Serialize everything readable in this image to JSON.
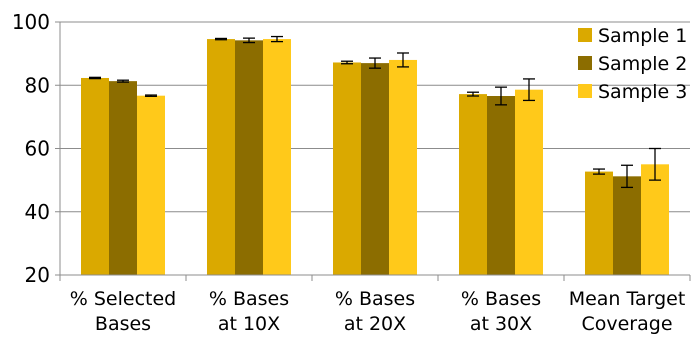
{
  "chart_data": {
    "type": "bar",
    "categories": [
      [
        "% Selected",
        "Bases"
      ],
      [
        "% Bases",
        "at 10X"
      ],
      [
        "% Bases",
        "at 20X"
      ],
      [
        "% Bases",
        "at 30X"
      ],
      [
        "Mean Target",
        "Coverage"
      ]
    ],
    "series": [
      {
        "name": "Sample 1",
        "color": "#DAA900",
        "values": [
          82.3,
          94.6,
          87.2,
          77.2,
          52.7
        ],
        "errors": [
          0.2,
          0.2,
          0.4,
          0.6,
          0.8
        ]
      },
      {
        "name": "Sample 2",
        "color": "#8C6D00",
        "values": [
          81.3,
          94.2,
          87.0,
          76.6,
          51.2
        ],
        "errors": [
          0.3,
          0.7,
          1.6,
          2.8,
          3.5
        ]
      },
      {
        "name": "Sample 3",
        "color": "#FFC91A",
        "values": [
          76.7,
          94.6,
          88.0,
          78.6,
          55.0
        ],
        "errors": [
          0.2,
          0.8,
          2.2,
          3.4,
          5.0
        ]
      }
    ],
    "ylim": [
      20,
      100
    ],
    "yticks": [
      20,
      40,
      60,
      80,
      100
    ],
    "grid": true,
    "legend": "top-right",
    "error_bars": true
  }
}
